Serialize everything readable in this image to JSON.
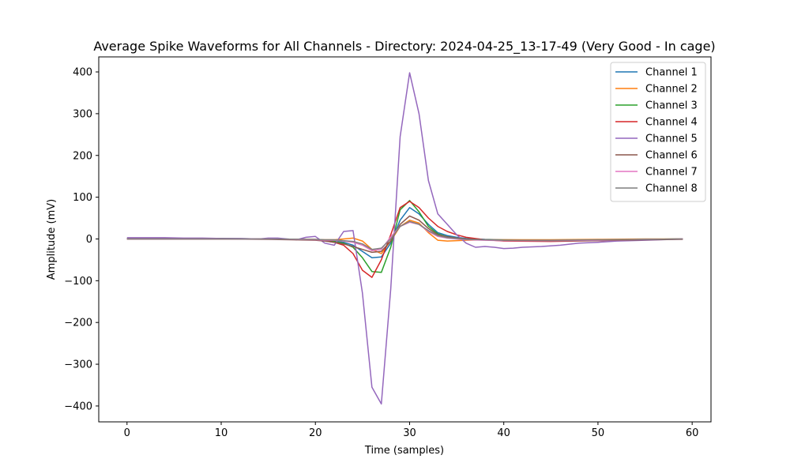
{
  "chart_data": {
    "type": "line",
    "title": "Average Spike Waveforms for All Channels - Directory: 2024-04-25_13-17-49 (Very Good - In cage)",
    "xlabel": "Time (samples)",
    "ylabel": "Amplitude (mV)",
    "xlim": [
      -3,
      62
    ],
    "ylim": [
      -438,
      436
    ],
    "xticks": [
      0,
      10,
      20,
      30,
      40,
      50,
      60
    ],
    "yticks": [
      -400,
      -300,
      -200,
      -100,
      0,
      100,
      200,
      300,
      400
    ],
    "xtick_labels": [
      "0",
      "10",
      "20",
      "30",
      "40",
      "50",
      "60"
    ],
    "ytick_labels": [
      "−400",
      "−300",
      "−200",
      "−100",
      "0",
      "100",
      "200",
      "300",
      "400"
    ],
    "grid": false,
    "legend_position": "top-right",
    "series": [
      {
        "name": "Channel 1",
        "color": "#1f77b4",
        "x": [
          0,
          5,
          10,
          15,
          20,
          21,
          22,
          23,
          24,
          25,
          26,
          27,
          28,
          29,
          30,
          31,
          32,
          33,
          34,
          35,
          36,
          38,
          40,
          45,
          50,
          55,
          59
        ],
        "y": [
          1,
          1,
          1,
          0,
          -2,
          -3,
          -4,
          -8,
          -15,
          -30,
          -45,
          -43,
          -10,
          45,
          75,
          60,
          35,
          15,
          8,
          4,
          1,
          -1,
          -2,
          -3,
          -2,
          -1,
          0
        ]
      },
      {
        "name": "Channel 2",
        "color": "#ff7f0e",
        "x": [
          0,
          5,
          10,
          15,
          20,
          21,
          22,
          23,
          24,
          25,
          26,
          27,
          28,
          29,
          30,
          31,
          32,
          33,
          34,
          35,
          36,
          38,
          40,
          45,
          50,
          55,
          59
        ],
        "y": [
          0,
          0,
          0,
          0,
          -1,
          -2,
          -2,
          0,
          2,
          -5,
          -25,
          -35,
          -5,
          30,
          45,
          38,
          15,
          -3,
          -5,
          -4,
          -3,
          -2,
          -2,
          -2,
          -1,
          0,
          0
        ]
      },
      {
        "name": "Channel 3",
        "color": "#2ca02c",
        "x": [
          0,
          5,
          10,
          15,
          20,
          21,
          22,
          23,
          24,
          25,
          26,
          27,
          28,
          29,
          30,
          31,
          32,
          33,
          34,
          35,
          36,
          38,
          40,
          45,
          50,
          55,
          59
        ],
        "y": [
          1,
          1,
          1,
          0,
          -2,
          -4,
          -6,
          -10,
          -20,
          -45,
          -78,
          -80,
          -20,
          70,
          92,
          65,
          30,
          12,
          5,
          2,
          0,
          -2,
          -3,
          -4,
          -3,
          -1,
          0
        ]
      },
      {
        "name": "Channel 4",
        "color": "#d62728",
        "x": [
          0,
          5,
          10,
          15,
          20,
          21,
          22,
          23,
          24,
          25,
          26,
          27,
          28,
          29,
          30,
          31,
          32,
          33,
          34,
          35,
          36,
          38,
          40,
          45,
          50,
          55,
          59
        ],
        "y": [
          0,
          0,
          0,
          0,
          -2,
          -4,
          -8,
          -15,
          -35,
          -75,
          -92,
          -50,
          10,
          75,
          90,
          75,
          50,
          30,
          18,
          10,
          4,
          -2,
          -5,
          -6,
          -4,
          -2,
          0
        ]
      },
      {
        "name": "Channel 5",
        "color": "#9467bd",
        "x": [
          0,
          2,
          4,
          6,
          8,
          10,
          12,
          14,
          15,
          16,
          17,
          18,
          19,
          20,
          21,
          22,
          23,
          24,
          25,
          26,
          27,
          28,
          29,
          30,
          31,
          32,
          33,
          34,
          35,
          36,
          37,
          38,
          39,
          40,
          41,
          42,
          44,
          46,
          48,
          50,
          52,
          55,
          58,
          59
        ],
        "y": [
          3,
          3,
          3,
          2,
          2,
          1,
          1,
          0,
          2,
          2,
          0,
          -2,
          4,
          6,
          -10,
          -15,
          18,
          20,
          -130,
          -355,
          -395,
          -120,
          245,
          398,
          300,
          140,
          60,
          35,
          10,
          -10,
          -20,
          -18,
          -20,
          -23,
          -22,
          -20,
          -18,
          -15,
          -10,
          -8,
          -5,
          -3,
          -1,
          0
        ]
      },
      {
        "name": "Channel 6",
        "color": "#8c564b",
        "x": [
          0,
          5,
          10,
          15,
          20,
          21,
          22,
          23,
          24,
          25,
          26,
          27,
          28,
          29,
          30,
          31,
          32,
          33,
          34,
          35,
          36,
          38,
          40,
          45,
          50,
          55,
          59
        ],
        "y": [
          0,
          0,
          0,
          -1,
          -3,
          -5,
          -8,
          -12,
          -18,
          -25,
          -32,
          -30,
          -5,
          35,
          55,
          45,
          25,
          10,
          5,
          2,
          0,
          -2,
          -4,
          -5,
          -4,
          -2,
          -1
        ]
      },
      {
        "name": "Channel 7",
        "color": "#e377c2",
        "x": [
          0,
          5,
          10,
          15,
          20,
          21,
          22,
          23,
          24,
          25,
          26,
          27,
          28,
          29,
          30,
          31,
          32,
          33,
          34,
          35,
          36,
          38,
          40,
          45,
          50,
          55,
          59
        ],
        "y": [
          0,
          0,
          0,
          0,
          -2,
          -3,
          -3,
          -5,
          -8,
          -15,
          -28,
          -25,
          5,
          30,
          40,
          35,
          18,
          6,
          2,
          0,
          -2,
          -3,
          -4,
          -4,
          -3,
          -1,
          0
        ]
      },
      {
        "name": "Channel 8",
        "color": "#7f7f7f",
        "x": [
          0,
          5,
          10,
          15,
          20,
          21,
          22,
          23,
          24,
          25,
          26,
          27,
          28,
          29,
          30,
          31,
          32,
          33,
          34,
          35,
          36,
          38,
          40,
          45,
          50,
          55,
          59
        ],
        "y": [
          0,
          0,
          0,
          0,
          -1,
          -2,
          -2,
          -4,
          -6,
          -12,
          -25,
          -22,
          0,
          30,
          42,
          35,
          20,
          8,
          3,
          1,
          -1,
          -2,
          -3,
          -3,
          -2,
          -1,
          0
        ]
      }
    ]
  }
}
